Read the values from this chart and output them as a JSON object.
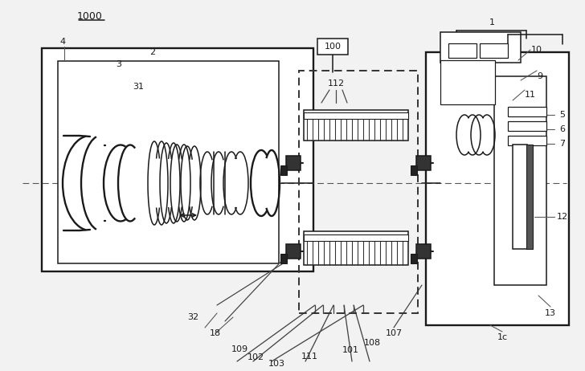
{
  "bg_color": "#f2f2f2",
  "line_color": "#1a1a1a",
  "fig_width": 7.28,
  "fig_height": 4.62,
  "dpi": 100
}
